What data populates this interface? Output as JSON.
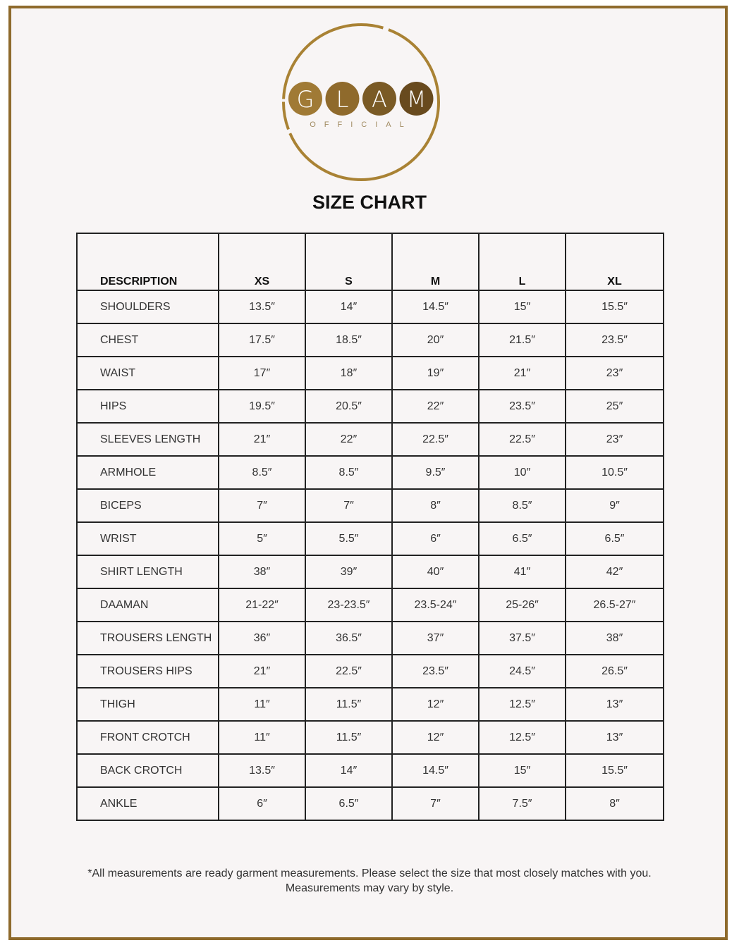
{
  "logo": {
    "letters": [
      "G",
      "L",
      "A",
      "M"
    ],
    "subtitle": "OFFICIAL",
    "colors": [
      "#a07a35",
      "#8f6a2c",
      "#7a5a25",
      "#684a1e"
    ],
    "ring_color": "#a98234"
  },
  "title": "SIZE CHART",
  "table": {
    "headers": [
      "DESCRIPTION",
      "XS",
      "S",
      "M",
      "L",
      "XL"
    ],
    "rows": [
      [
        "SHOULDERS",
        "13.5″",
        "14″",
        "14.5″",
        "15″",
        "15.5″"
      ],
      [
        "CHEST",
        "17.5″",
        "18.5″",
        "20″",
        "21.5″",
        "23.5″"
      ],
      [
        "WAIST",
        "17″",
        "18″",
        "19″",
        "21″",
        "23″"
      ],
      [
        "HIPS",
        "19.5″",
        "20.5″",
        "22″",
        "23.5″",
        "25″"
      ],
      [
        "SLEEVES LENGTH",
        "21″",
        "22″",
        "22.5″",
        "22.5″",
        "23″"
      ],
      [
        "ARMHOLE",
        "8.5″",
        "8.5″",
        "9.5″",
        "10″",
        "10.5″"
      ],
      [
        "BICEPS",
        "7″",
        "7″",
        "8″",
        "8.5″",
        "9″"
      ],
      [
        "WRIST",
        "5″",
        "5.5″",
        "6″",
        "6.5″",
        "6.5″"
      ],
      [
        "SHIRT LENGTH",
        "38″",
        "39″",
        "40″",
        "41″",
        "42″"
      ],
      [
        "DAAMAN",
        "21-22″",
        "23-23.5″",
        "23.5-24″",
        "25-26″",
        "26.5-27″"
      ],
      [
        "TROUSERS LENGTH",
        "36″",
        "36.5″",
        "37″",
        "37.5″",
        "38″"
      ],
      [
        "TROUSERS HIPS",
        "21″",
        "22.5″",
        "23.5″",
        "24.5″",
        "26.5″"
      ],
      [
        "THIGH",
        "11″",
        "11.5″",
        "12″",
        "12.5″",
        "13″"
      ],
      [
        "FRONT CROTCH",
        "11″",
        "11.5″",
        "12″",
        "12.5″",
        "13″"
      ],
      [
        "BACK CROTCH",
        "13.5″",
        "14″",
        "14.5″",
        "15″",
        "15.5″"
      ],
      [
        "ANKLE",
        "6″",
        "6.5″",
        "7″",
        "7.5″",
        "8″"
      ]
    ]
  },
  "note": {
    "line1": "*All measurements are ready garment measurements. Please select the size that most closely matches with you.",
    "line2": "Measurements may vary by style."
  }
}
